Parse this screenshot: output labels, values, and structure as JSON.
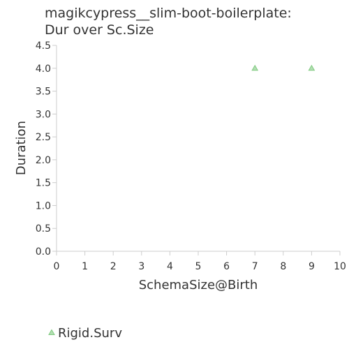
{
  "chart_data": {
    "type": "scatter",
    "title_line1": "magikcypress__slim-boot-boilerplate:",
    "title_line2": "Dur over Sc.Size",
    "xlabel": "SchemaSize@Birth",
    "ylabel": "Duration",
    "xlim": [
      0,
      10
    ],
    "ylim": [
      0,
      4.5
    ],
    "xticks": [
      "0",
      "1",
      "2",
      "3",
      "4",
      "5",
      "6",
      "7",
      "8",
      "9",
      "10"
    ],
    "yticks": [
      "0.0",
      "0.5",
      "1.0",
      "1.5",
      "2.0",
      "2.5",
      "3.0",
      "3.5",
      "4.0",
      "4.5"
    ],
    "grid": false,
    "legend_position": "bottom-left",
    "series": [
      {
        "name": "Rigid.Surv",
        "marker": "triangle",
        "color": "#7fc97f",
        "points": [
          {
            "x": 7,
            "y": 4.0
          },
          {
            "x": 9,
            "y": 4.0
          }
        ]
      }
    ]
  }
}
